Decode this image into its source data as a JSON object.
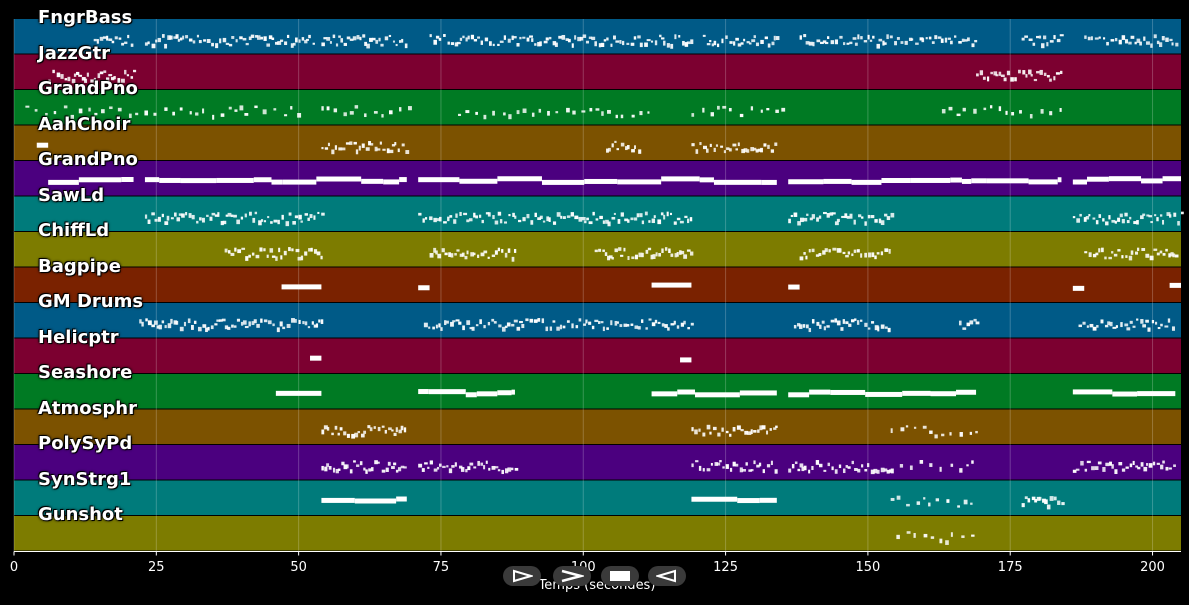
{
  "tracks": [
    {
      "name": "FngrBass",
      "color": "#005a87"
    },
    {
      "name": "JazzGtr",
      "color": "#7c0030"
    },
    {
      "name": "GrandPno",
      "color": "#007a23"
    },
    {
      "name": "AahChoir",
      "color": "#7c5200"
    },
    {
      "name": "GrandPno",
      "color": "#4b007f"
    },
    {
      "name": "SawLd",
      "color": "#007b7b"
    },
    {
      "name": "ChiffLd",
      "color": "#7d7c00"
    },
    {
      "name": "Bagpipe",
      "color": "#7a2200"
    },
    {
      "name": "GM Drums",
      "color": "#005a87"
    },
    {
      "name": "Helicptr",
      "color": "#7c0030"
    },
    {
      "name": "Seashore",
      "color": "#007a23"
    },
    {
      "name": "Atmosphr",
      "color": "#7c5200"
    },
    {
      "name": "PolySyPd",
      "color": "#4b007f"
    },
    {
      "name": "SynStrg1",
      "color": "#007b7b"
    },
    {
      "name": "Gunshot",
      "color": "#7d7c00"
    }
  ],
  "axis": {
    "label": "Temps (secondes)",
    "ticks": [
      "0",
      "25",
      "50",
      "75",
      "100",
      "125",
      "150",
      "175",
      "200"
    ],
    "tick_values": [
      0,
      25,
      50,
      75,
      100,
      125,
      150,
      175,
      200
    ],
    "xlim": [
      0,
      205
    ]
  },
  "controls": [
    {
      "name": "play-button",
      "icon": "play-icon"
    },
    {
      "name": "forward-button",
      "icon": "chevron-right-icon"
    },
    {
      "name": "stop-button",
      "icon": "stop-icon"
    },
    {
      "name": "rewind-button",
      "icon": "chevron-left-icon"
    }
  ],
  "note_segments": [
    {
      "track": 0,
      "from": 14,
      "to": 21,
      "style": "dense"
    },
    {
      "track": 0,
      "from": 23,
      "to": 53,
      "style": "dense"
    },
    {
      "track": 0,
      "from": 54,
      "to": 69,
      "style": "dense"
    },
    {
      "track": 0,
      "from": 73,
      "to": 119,
      "style": "dense"
    },
    {
      "track": 0,
      "from": 121,
      "to": 134,
      "style": "dense"
    },
    {
      "track": 0,
      "from": 138,
      "to": 169,
      "style": "dense"
    },
    {
      "track": 0,
      "from": 177,
      "to": 184,
      "style": "dense"
    },
    {
      "track": 0,
      "from": 188,
      "to": 204,
      "style": "dense"
    },
    {
      "track": 1,
      "from": 6,
      "to": 21,
      "style": "dense"
    },
    {
      "track": 1,
      "from": 169,
      "to": 184,
      "style": "dense"
    },
    {
      "track": 2,
      "from": 2,
      "to": 50,
      "style": "sparse"
    },
    {
      "track": 2,
      "from": 54,
      "to": 70,
      "style": "sparse"
    },
    {
      "track": 2,
      "from": 78,
      "to": 112,
      "style": "sparse"
    },
    {
      "track": 2,
      "from": 119,
      "to": 135,
      "style": "sparse"
    },
    {
      "track": 2,
      "from": 163,
      "to": 184,
      "style": "sparse"
    },
    {
      "track": 3,
      "from": 4,
      "to": 6,
      "style": "block"
    },
    {
      "track": 3,
      "from": 54,
      "to": 69,
      "style": "dense"
    },
    {
      "track": 3,
      "from": 104,
      "to": 110,
      "style": "dense"
    },
    {
      "track": 3,
      "from": 119,
      "to": 134,
      "style": "dense"
    },
    {
      "track": 4,
      "from": 6,
      "to": 21,
      "style": "block"
    },
    {
      "track": 4,
      "from": 23,
      "to": 69,
      "style": "block"
    },
    {
      "track": 4,
      "from": 71,
      "to": 134,
      "style": "block"
    },
    {
      "track": 4,
      "from": 136,
      "to": 184,
      "style": "block"
    },
    {
      "track": 4,
      "from": 186,
      "to": 205,
      "style": "block"
    },
    {
      "track": 5,
      "from": 23,
      "to": 54,
      "style": "dense"
    },
    {
      "track": 5,
      "from": 71,
      "to": 119,
      "style": "dense"
    },
    {
      "track": 5,
      "from": 136,
      "to": 154,
      "style": "dense"
    },
    {
      "track": 5,
      "from": 186,
      "to": 205,
      "style": "dense"
    },
    {
      "track": 6,
      "from": 37,
      "to": 54,
      "style": "dense"
    },
    {
      "track": 6,
      "from": 73,
      "to": 88,
      "style": "dense"
    },
    {
      "track": 6,
      "from": 102,
      "to": 119,
      "style": "dense"
    },
    {
      "track": 6,
      "from": 138,
      "to": 154,
      "style": "dense"
    },
    {
      "track": 6,
      "from": 188,
      "to": 204,
      "style": "dense"
    },
    {
      "track": 7,
      "from": 47,
      "to": 54,
      "style": "block"
    },
    {
      "track": 7,
      "from": 71,
      "to": 73,
      "style": "block"
    },
    {
      "track": 7,
      "from": 112,
      "to": 119,
      "style": "block"
    },
    {
      "track": 7,
      "from": 136,
      "to": 138,
      "style": "block"
    },
    {
      "track": 7,
      "from": 186,
      "to": 188,
      "style": "block"
    },
    {
      "track": 7,
      "from": 203,
      "to": 205,
      "style": "block"
    },
    {
      "track": 8,
      "from": 22,
      "to": 54,
      "style": "dense"
    },
    {
      "track": 8,
      "from": 72,
      "to": 119,
      "style": "dense"
    },
    {
      "track": 8,
      "from": 137,
      "to": 154,
      "style": "dense"
    },
    {
      "track": 8,
      "from": 166,
      "to": 169,
      "style": "dense"
    },
    {
      "track": 8,
      "from": 187,
      "to": 204,
      "style": "dense"
    },
    {
      "track": 9,
      "from": 52,
      "to": 54,
      "style": "block"
    },
    {
      "track": 9,
      "from": 117,
      "to": 119,
      "style": "block"
    },
    {
      "track": 10,
      "from": 46,
      "to": 54,
      "style": "block"
    },
    {
      "track": 10,
      "from": 71,
      "to": 88,
      "style": "block"
    },
    {
      "track": 10,
      "from": 112,
      "to": 134,
      "style": "block"
    },
    {
      "track": 10,
      "from": 136,
      "to": 169,
      "style": "block"
    },
    {
      "track": 10,
      "from": 186,
      "to": 204,
      "style": "block"
    },
    {
      "track": 11,
      "from": 54,
      "to": 69,
      "style": "dense"
    },
    {
      "track": 11,
      "from": 119,
      "to": 134,
      "style": "dense"
    },
    {
      "track": 11,
      "from": 154,
      "to": 169,
      "style": "sparse"
    },
    {
      "track": 12,
      "from": 54,
      "to": 69,
      "style": "dense"
    },
    {
      "track": 12,
      "from": 71,
      "to": 88,
      "style": "dense"
    },
    {
      "track": 12,
      "from": 119,
      "to": 134,
      "style": "dense"
    },
    {
      "track": 12,
      "from": 136,
      "to": 154,
      "style": "dense"
    },
    {
      "track": 12,
      "from": 154,
      "to": 169,
      "style": "sparse"
    },
    {
      "track": 12,
      "from": 186,
      "to": 204,
      "style": "dense"
    },
    {
      "track": 13,
      "from": 54,
      "to": 69,
      "style": "block"
    },
    {
      "track": 13,
      "from": 119,
      "to": 134,
      "style": "block"
    },
    {
      "track": 13,
      "from": 154,
      "to": 169,
      "style": "sparse"
    },
    {
      "track": 13,
      "from": 177,
      "to": 184,
      "style": "dense"
    },
    {
      "track": 14,
      "from": 155,
      "to": 169,
      "style": "sparse"
    }
  ]
}
